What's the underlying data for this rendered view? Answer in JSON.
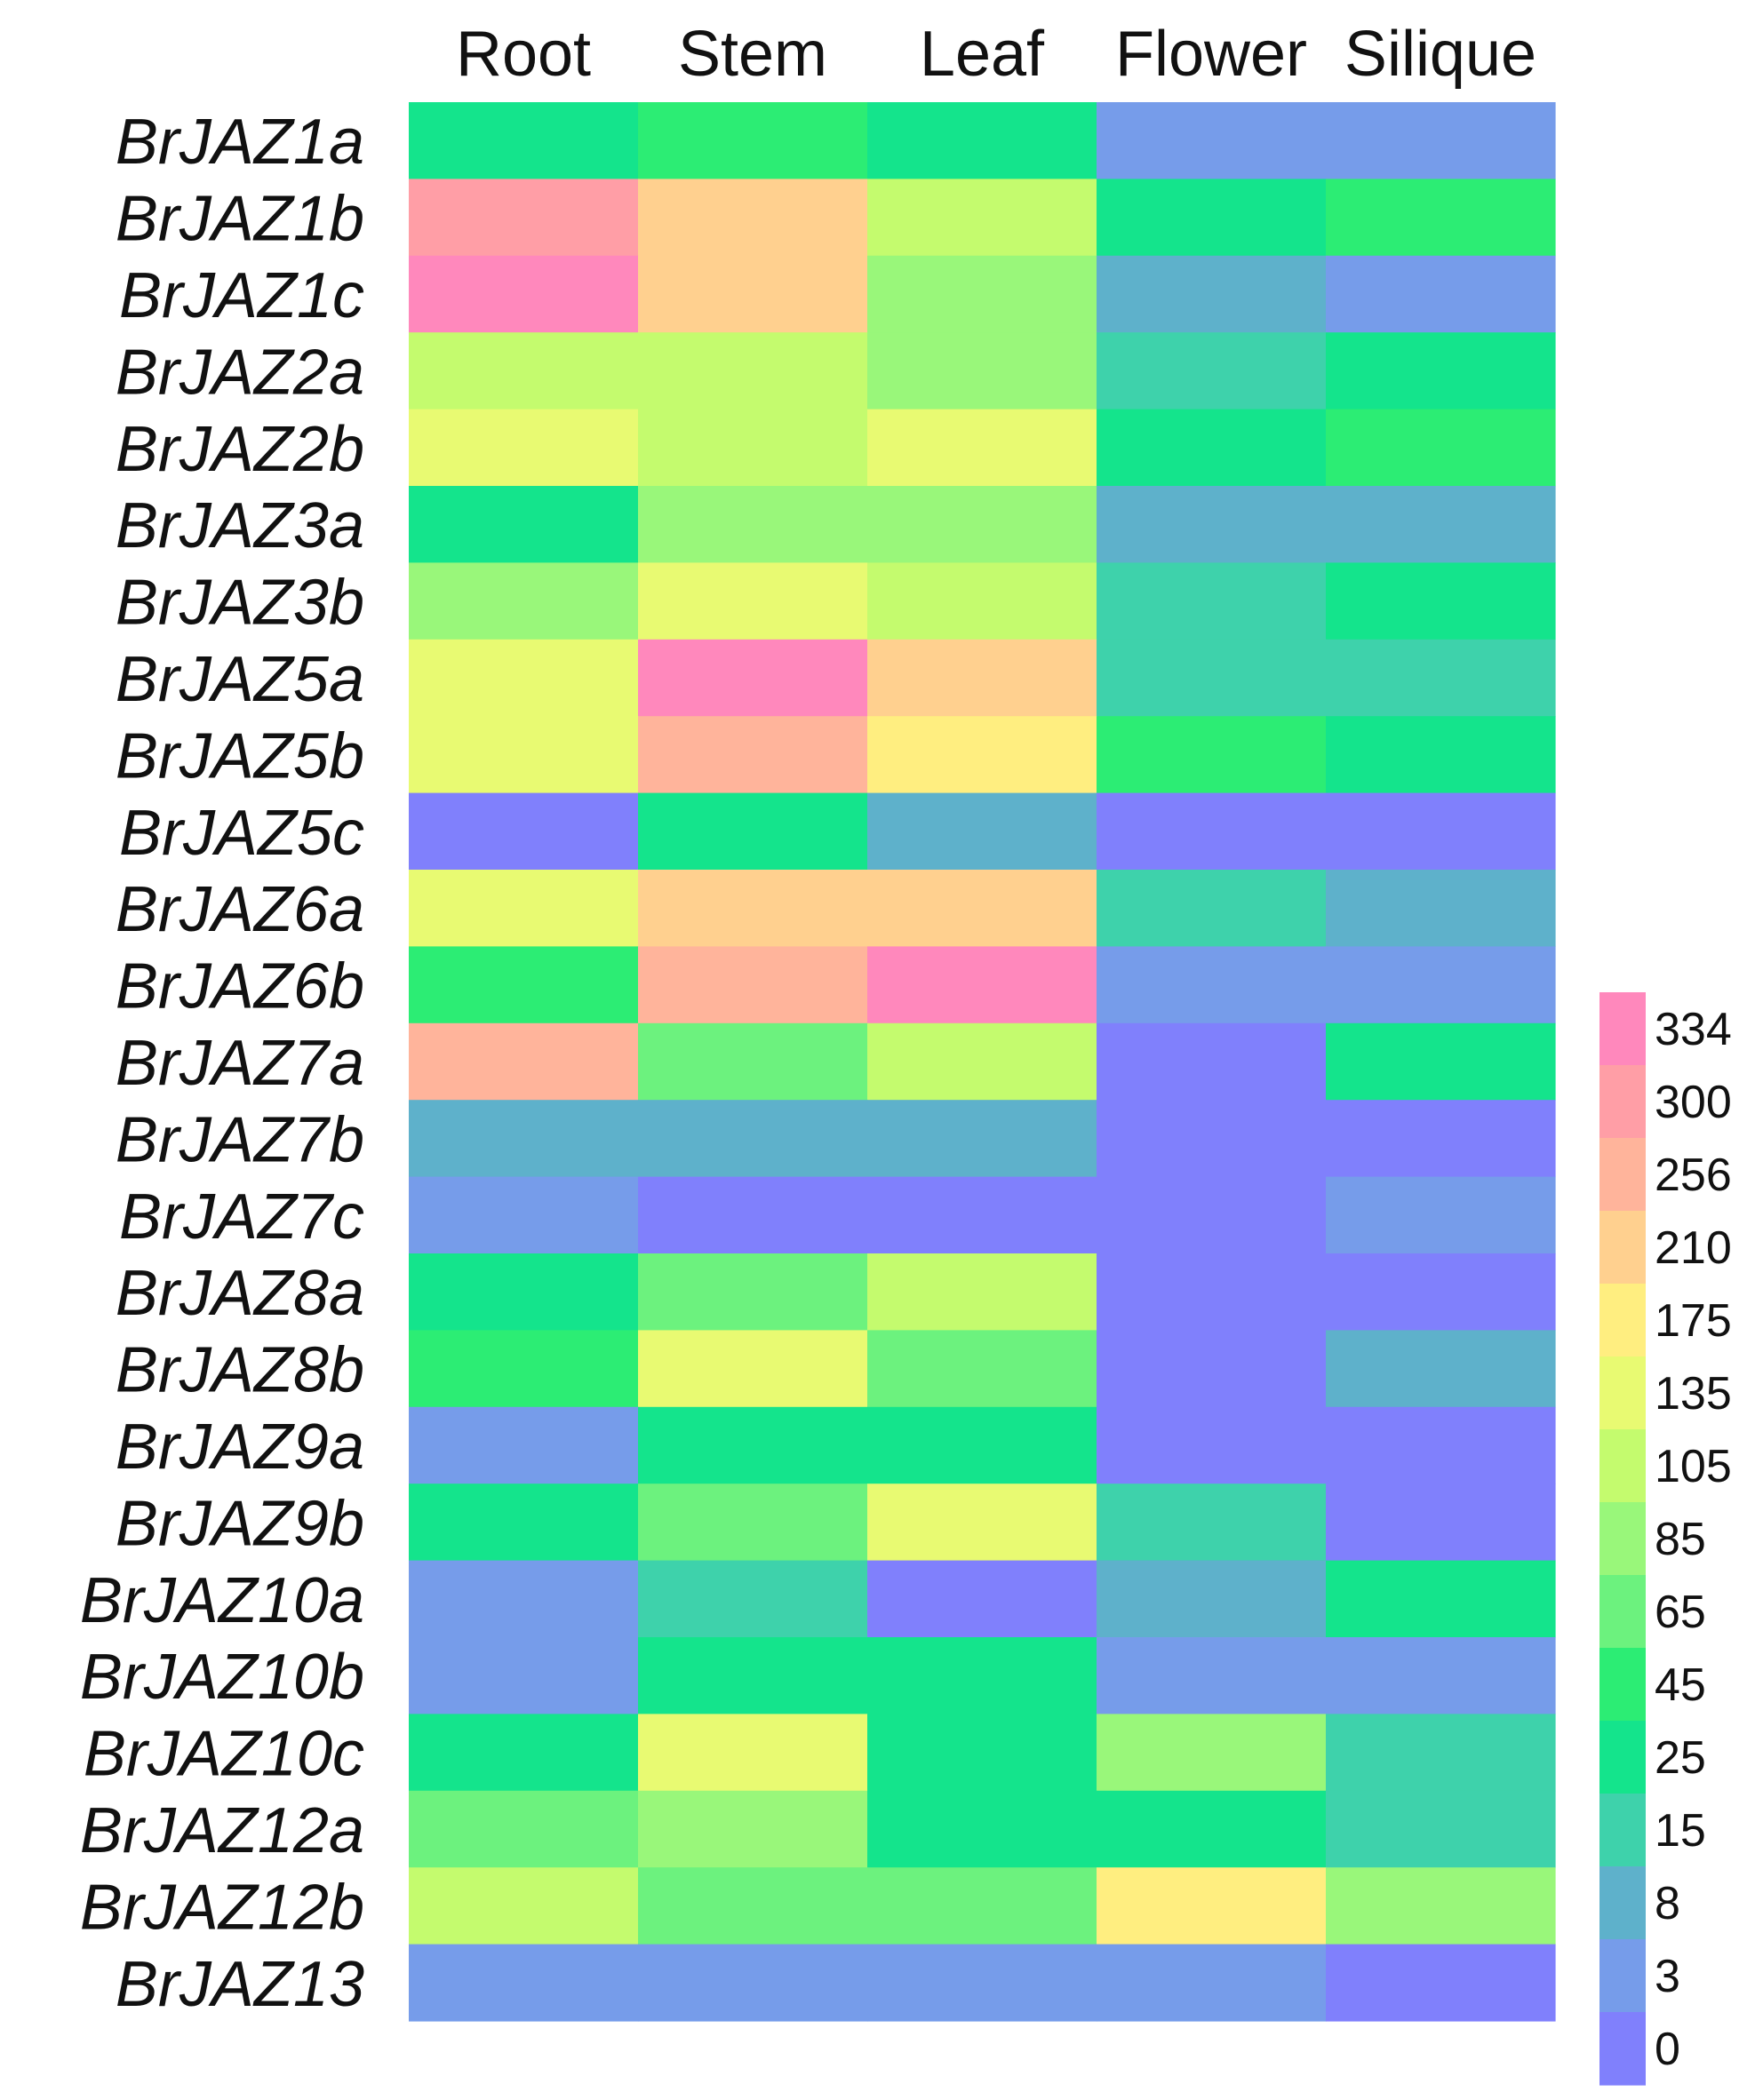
{
  "chart_data": {
    "type": "heatmap",
    "columns": [
      "Root",
      "Stem",
      "Leaf",
      "Flower",
      "Silique"
    ],
    "rows": [
      "BrJAZ1a",
      "BrJAZ1b",
      "BrJAZ1c",
      "BrJAZ2a",
      "BrJAZ2b",
      "BrJAZ3a",
      "BrJAZ3b",
      "BrJAZ5a",
      "BrJAZ5b",
      "BrJAZ5c",
      "BrJAZ6a",
      "BrJAZ6b",
      "BrJAZ7a",
      "BrJAZ7b",
      "BrJAZ7c",
      "BrJAZ8a",
      "BrJAZ8b",
      "BrJAZ9a",
      "BrJAZ9b",
      "BrJAZ10a",
      "BrJAZ10b",
      "BrJAZ10c",
      "BrJAZ12a",
      "BrJAZ12b",
      "BrJAZ13"
    ],
    "values": [
      [
        25,
        45,
        25,
        3,
        3
      ],
      [
        300,
        210,
        105,
        25,
        45
      ],
      [
        334,
        210,
        85,
        8,
        3
      ],
      [
        105,
        105,
        85,
        15,
        25
      ],
      [
        135,
        105,
        135,
        25,
        45
      ],
      [
        25,
        85,
        85,
        8,
        8
      ],
      [
        85,
        135,
        105,
        15,
        25
      ],
      [
        135,
        334,
        210,
        15,
        15
      ],
      [
        135,
        256,
        175,
        45,
        25
      ],
      [
        0,
        25,
        8,
        0,
        0
      ],
      [
        135,
        210,
        210,
        15,
        8
      ],
      [
        45,
        256,
        334,
        3,
        3
      ],
      [
        256,
        65,
        105,
        0,
        25
      ],
      [
        8,
        8,
        8,
        0,
        0
      ],
      [
        3,
        0,
        0,
        0,
        3
      ],
      [
        25,
        65,
        105,
        0,
        0
      ],
      [
        45,
        135,
        65,
        0,
        8
      ],
      [
        3,
        25,
        25,
        0,
        0
      ],
      [
        25,
        65,
        135,
        15,
        0
      ],
      [
        3,
        15,
        0,
        8,
        25
      ],
      [
        3,
        25,
        25,
        3,
        3
      ],
      [
        25,
        135,
        25,
        85,
        15
      ],
      [
        65,
        85,
        25,
        25,
        15
      ],
      [
        105,
        65,
        65,
        175,
        85
      ],
      [
        3,
        3,
        3,
        3,
        0
      ]
    ],
    "legend": {
      "ticks": [
        334,
        300,
        256,
        210,
        175,
        135,
        105,
        85,
        65,
        45,
        25,
        15,
        8,
        3,
        0
      ],
      "colors": [
        "#ff88bc",
        "#ff9ea6",
        "#ffb49b",
        "#ffd08f",
        "#ffee80",
        "#e8fa72",
        "#c4fb6e",
        "#99f77a",
        "#6cf27e",
        "#2ced74",
        "#14e48c",
        "#3ed2ab",
        "#5eb1cb",
        "#769cea",
        "#8080fc"
      ],
      "placement": "right"
    }
  }
}
